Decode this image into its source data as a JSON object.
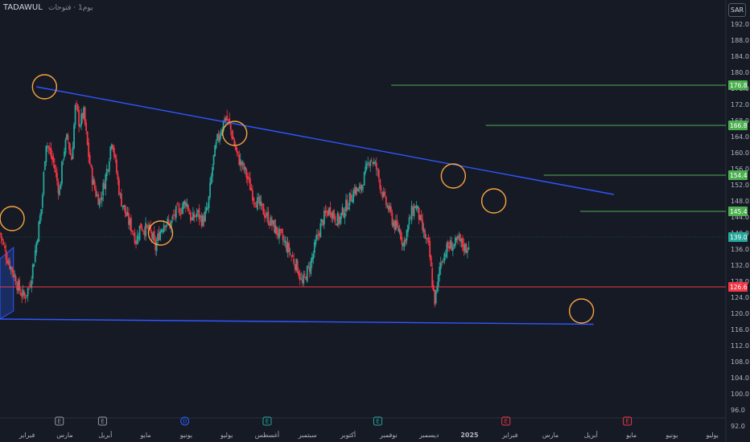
{
  "header": {
    "symbol": "TADAWUL",
    "suffix": "يوم1 · فتوحات",
    "currency": "SAR"
  },
  "chart_data": {
    "type": "candlestick",
    "title": "",
    "ylim": [
      92,
      194
    ],
    "y_ticks": [
      92.0,
      96.0,
      100.0,
      104.0,
      108.0,
      112.0,
      116.0,
      120.0,
      124.0,
      128.0,
      132.0,
      136.0,
      140.0,
      144.0,
      148.0,
      152.0,
      156.0,
      160.0,
      164.0,
      168.0,
      172.0,
      176.0,
      180.0,
      184.0,
      188.0,
      192.0
    ],
    "x_ticks": [
      {
        "label": "فبراير",
        "x": 0
      },
      {
        "label": "مارس",
        "x": 28
      },
      {
        "label": "أبريل",
        "x": 58
      },
      {
        "label": "مايو",
        "x": 88
      },
      {
        "label": "يونيو",
        "x": 118
      },
      {
        "label": "يوليو",
        "x": 148
      },
      {
        "label": "أغسطس",
        "x": 178
      },
      {
        "label": "سبتمبر",
        "x": 208
      },
      {
        "label": "أكتوبر",
        "x": 238
      },
      {
        "label": "نوفمبر",
        "x": 268
      },
      {
        "label": "ديسمبر",
        "x": 298
      },
      {
        "label": "2025",
        "x": 328,
        "year": true
      },
      {
        "label": "فبراير",
        "x": 358
      },
      {
        "label": "مارس",
        "x": 388
      },
      {
        "label": "أبريل",
        "x": 418
      },
      {
        "label": "مايو",
        "x": 448
      },
      {
        "label": "يونيو",
        "x": 478
      },
      {
        "label": "يوليو",
        "x": 508
      }
    ],
    "x_range": [
      -20,
      518
    ],
    "price_path": [
      [
        -20,
        140
      ],
      [
        -15,
        134
      ],
      [
        -10,
        130
      ],
      [
        -6,
        126
      ],
      [
        -2,
        124
      ],
      [
        2,
        127
      ],
      [
        5,
        133
      ],
      [
        8,
        140
      ],
      [
        11,
        147
      ],
      [
        14,
        163
      ],
      [
        17,
        160
      ],
      [
        20,
        157
      ],
      [
        24,
        150
      ],
      [
        27,
        160
      ],
      [
        30,
        164
      ],
      [
        33,
        158
      ],
      [
        36,
        172
      ],
      [
        39,
        167
      ],
      [
        42,
        170
      ],
      [
        45,
        161
      ],
      [
        48,
        154
      ],
      [
        51,
        150
      ],
      [
        54,
        148
      ],
      [
        57,
        152
      ],
      [
        60,
        157
      ],
      [
        63,
        164
      ],
      [
        66,
        156
      ],
      [
        69,
        149
      ],
      [
        72,
        146
      ],
      [
        75,
        143
      ],
      [
        78,
        141
      ],
      [
        81,
        138
      ],
      [
        84,
        142
      ],
      [
        87,
        141
      ],
      [
        90,
        141
      ],
      [
        93,
        139
      ],
      [
        95,
        136
      ],
      [
        98,
        140
      ],
      [
        102,
        143
      ],
      [
        106,
        142
      ],
      [
        110,
        145
      ],
      [
        114,
        146
      ],
      [
        118,
        148
      ],
      [
        122,
        143
      ],
      [
        126,
        145
      ],
      [
        130,
        143
      ],
      [
        134,
        146
      ],
      [
        138,
        158
      ],
      [
        141,
        163
      ],
      [
        144,
        166
      ],
      [
        147,
        169
      ],
      [
        150,
        167
      ],
      [
        153,
        163
      ],
      [
        156,
        159
      ],
      [
        159,
        157
      ],
      [
        162,
        155
      ],
      [
        165,
        152
      ],
      [
        168,
        149
      ],
      [
        172,
        147
      ],
      [
        176,
        145
      ],
      [
        180,
        143
      ],
      [
        184,
        141
      ],
      [
        188,
        139
      ],
      [
        192,
        137
      ],
      [
        195,
        135
      ],
      [
        198,
        133
      ],
      [
        201,
        131
      ],
      [
        204,
        127
      ],
      [
        207,
        130
      ],
      [
        210,
        132
      ],
      [
        213,
        136
      ],
      [
        216,
        140
      ],
      [
        219,
        143
      ],
      [
        222,
        145
      ],
      [
        225,
        146
      ],
      [
        228,
        144
      ],
      [
        231,
        143
      ],
      [
        234,
        145
      ],
      [
        237,
        147
      ],
      [
        240,
        149
      ],
      [
        243,
        151
      ],
      [
        246,
        150
      ],
      [
        249,
        153
      ],
      [
        252,
        156
      ],
      [
        254,
        159
      ],
      [
        256,
        158
      ],
      [
        259,
        156
      ],
      [
        262,
        152
      ],
      [
        265,
        148
      ],
      [
        268,
        146
      ],
      [
        271,
        143
      ],
      [
        274,
        141
      ],
      [
        276,
        141
      ],
      [
        279,
        137
      ],
      [
        282,
        141
      ],
      [
        285,
        145
      ],
      [
        288,
        147
      ],
      [
        290,
        145
      ],
      [
        292,
        142
      ],
      [
        295,
        139
      ],
      [
        298,
        136
      ],
      [
        300,
        129
      ],
      [
        302,
        123
      ],
      [
        304,
        126
      ],
      [
        306,
        132
      ],
      [
        308,
        134
      ],
      [
        311,
        136
      ],
      [
        314,
        137
      ],
      [
        317,
        137
      ],
      [
        320,
        138
      ],
      [
        323,
        137
      ],
      [
        326,
        136
      ],
      [
        328,
        138.6
      ]
    ],
    "channels": [
      {
        "name": "upper",
        "from": [
          7,
          176.4
        ],
        "to": [
          435,
          149.6
        ],
        "color": "#2f56ff"
      },
      {
        "name": "lower",
        "from": [
          -20,
          118.6
        ],
        "to": [
          420,
          117.3
        ],
        "color": "#2f56ff"
      }
    ],
    "highlight_circles": [
      {
        "x": 13,
        "y": 176.4
      },
      {
        "x": -11,
        "y": 143.6
      },
      {
        "x": 99,
        "y": 140.0
      },
      {
        "x": 154,
        "y": 164.8
      },
      {
        "x": 316,
        "y": 154.2
      },
      {
        "x": 346,
        "y": 148.0
      },
      {
        "x": 411,
        "y": 120.6
      }
    ],
    "horizontal_levels": [
      {
        "price": 176.8,
        "x_start": 270,
        "label": "176.8",
        "color": "#4caf50"
      },
      {
        "price": 166.8,
        "x_start": 340,
        "label": "166.8",
        "color": "#4caf50"
      },
      {
        "price": 154.4,
        "x_start": 383,
        "label": "154.4",
        "color": "#4caf50"
      },
      {
        "price": 145.4,
        "x_start": 410,
        "label": "145.4",
        "color": "#4caf50"
      },
      {
        "price": 126.6,
        "x_start": -20,
        "label": "126.6",
        "color": "#f23645"
      }
    ],
    "last_price": {
      "value": 139.0,
      "label": "139.0",
      "color": "#26a69a"
    },
    "events": [
      {
        "x": 24,
        "symbol": "E",
        "color": "#9598a1"
      },
      {
        "x": 56,
        "symbol": "E",
        "color": "#9598a1"
      },
      {
        "x": 117,
        "symbol": "D",
        "color": "#2962ff"
      },
      {
        "x": 178,
        "symbol": "E",
        "color": "#26a69a"
      },
      {
        "x": 260,
        "symbol": "E",
        "color": "#26a69a"
      },
      {
        "x": 355,
        "symbol": "E",
        "color": "#f23645"
      },
      {
        "x": 445,
        "symbol": "E",
        "color": "#f23645"
      }
    ],
    "colors": {
      "up": "#26a69a",
      "down": "#f23645",
      "background": "#161a25"
    }
  }
}
